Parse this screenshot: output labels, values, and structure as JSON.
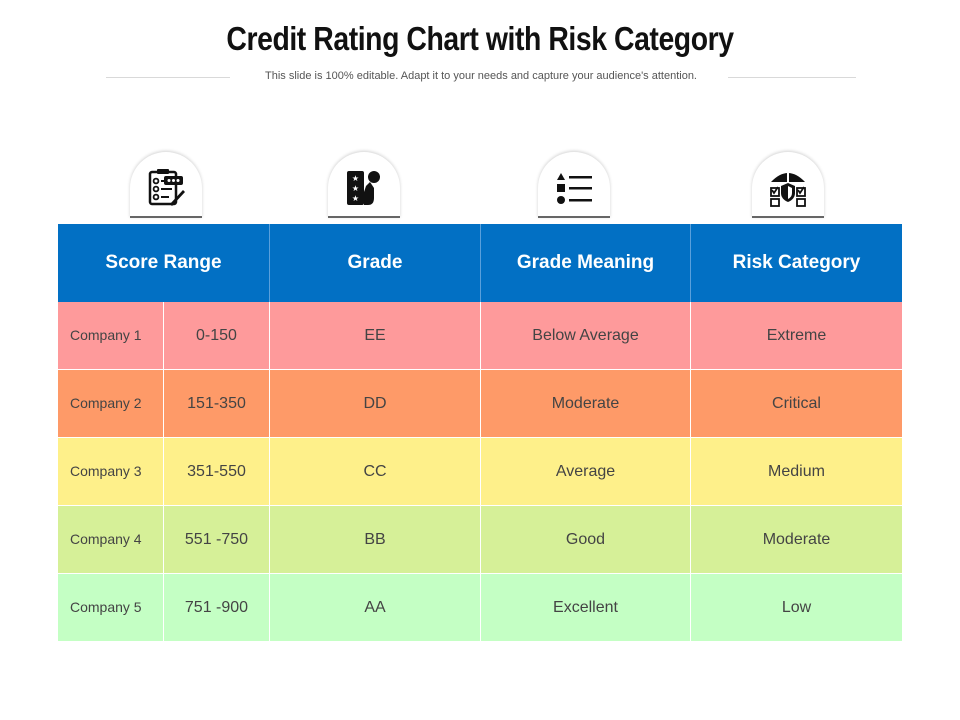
{
  "header": {
    "title": "Credit Rating Chart with Risk Category",
    "subtitle": "This slide is 100% editable. Adapt it to your needs and capture your audience's attention."
  },
  "icons": [
    "checklist-card-icon",
    "rating-hand-icon",
    "list-shapes-icon",
    "umbrella-shield-icon"
  ],
  "table": {
    "columns": [
      "Score Range",
      "Grade",
      "Grade Meaning",
      "Risk Category"
    ],
    "rows": [
      {
        "company": "Company 1",
        "range": "0-150",
        "grade": "EE",
        "meaning": "Below Average",
        "risk": "Extreme",
        "color": "#fe9a9b"
      },
      {
        "company": "Company 2",
        "range": "151-350",
        "grade": "DD",
        "meaning": "Moderate",
        "risk": "Critical",
        "color": "#fe9a68"
      },
      {
        "company": "Company 3",
        "range": "351-550",
        "grade": "CC",
        "meaning": "Average",
        "risk": "Medium",
        "color": "#fef08a"
      },
      {
        "company": "Company 4",
        "range": "551 -750",
        "grade": "BB",
        "meaning": "Good",
        "risk": "Moderate",
        "color": "#d6f098"
      },
      {
        "company": "Company 5",
        "range": "751 -900",
        "grade": "AA",
        "meaning": "Excellent",
        "risk": "Low",
        "color": "#c4ffc4"
      }
    ]
  },
  "colors": {
    "header_bg": "#0270c4"
  }
}
